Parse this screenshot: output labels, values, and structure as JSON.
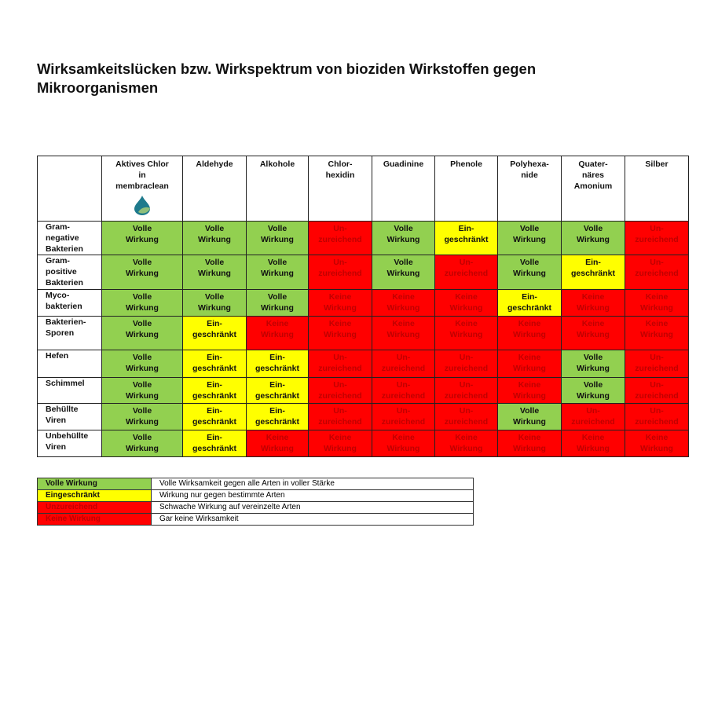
{
  "title": "Wirksamkeitslücken bzw. Wirkspektrum von bioziden Wirkstoffen gegen Mikroorganismen",
  "colors": {
    "V": "#92d050",
    "E": "#ffff00",
    "U": "#ff0000",
    "K": "#ff0000",
    "red_text": "#c00000"
  },
  "ratings": {
    "V": [
      "Volle",
      "Wirkung"
    ],
    "E": [
      "Ein-",
      "geschränkt"
    ],
    "U": [
      "Un-",
      "zureichend"
    ],
    "K": [
      "Keine",
      "Wirkung"
    ]
  },
  "columns": [
    {
      "lines": [
        "Aktives Chlor",
        "in",
        "membraclean"
      ],
      "logo": "membraclean-drop-logo"
    },
    {
      "lines": [
        "Aldehyde"
      ]
    },
    {
      "lines": [
        "Alkohole"
      ]
    },
    {
      "lines": [
        "Chlor-",
        "hexidin"
      ]
    },
    {
      "lines": [
        "Guadinine"
      ]
    },
    {
      "lines": [
        "Phenole"
      ]
    },
    {
      "lines": [
        "Polyhexa-",
        "nide"
      ]
    },
    {
      "lines": [
        "Quater-",
        "näres",
        "Amonium"
      ]
    },
    {
      "lines": [
        "Silber"
      ]
    }
  ],
  "rows": [
    {
      "lines": [
        "Gram-",
        "negative",
        "Bakterien"
      ],
      "values": [
        "V",
        "V",
        "V",
        "U",
        "V",
        "E",
        "V",
        "V",
        "U"
      ]
    },
    {
      "lines": [
        "Gram-",
        "positive",
        "Bakterien"
      ],
      "values": [
        "V",
        "V",
        "V",
        "U",
        "V",
        "U",
        "V",
        "E",
        "U"
      ]
    },
    {
      "lines": [
        "Myco-",
        "bakterien"
      ],
      "values": [
        "V",
        "V",
        "V",
        "K",
        "K",
        "K",
        "E",
        "K",
        "K"
      ]
    },
    {
      "lines": [
        "Bakterien-",
        "Sporen"
      ],
      "values": [
        "V",
        "E",
        "K",
        "K",
        "K",
        "K",
        "K",
        "K",
        "K"
      ]
    },
    {
      "lines": [
        "Hefen"
      ],
      "values": [
        "V",
        "E",
        "E",
        "U",
        "U",
        "U",
        "K",
        "V",
        "U"
      ]
    },
    {
      "lines": [
        "Schimmel"
      ],
      "values": [
        "V",
        "E",
        "E",
        "U",
        "U",
        "U",
        "K",
        "V",
        "U"
      ]
    },
    {
      "lines": [
        "Behüllte",
        "Viren"
      ],
      "values": [
        "V",
        "E",
        "E",
        "U",
        "U",
        "U",
        "V",
        "U",
        "U"
      ]
    },
    {
      "lines": [
        "Unbehüllte",
        "Viren"
      ],
      "values": [
        "V",
        "E",
        "K",
        "K",
        "K",
        "K",
        "K",
        "K",
        "K"
      ]
    }
  ],
  "legend": [
    {
      "code": "V",
      "label": "Volle Wirkung",
      "description": "Volle Wirksamkeit gegen alle Arten in voller Stärke"
    },
    {
      "code": "E",
      "label": "Eingeschränkt",
      "description": "Wirkung nur gegen bestimmte Arten"
    },
    {
      "code": "U",
      "label": "Unzureichend",
      "description": "Schwache Wirkung auf vereinzelte Arten"
    },
    {
      "code": "K",
      "label": "Keine Wirkung",
      "description": "Gar keine Wirksamkeit"
    }
  ]
}
